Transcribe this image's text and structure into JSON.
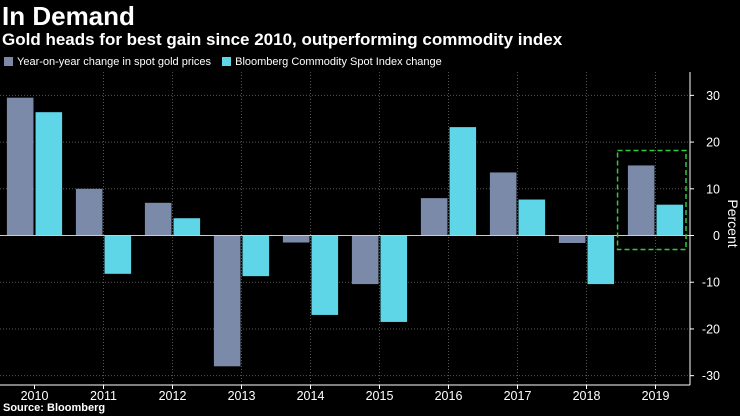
{
  "header": {
    "title": "In Demand",
    "subtitle": "Gold heads for best gain since 2010, outperforming commodity index"
  },
  "source": "Source: Bloomberg",
  "colors": {
    "gold_series": "#7b8aa8",
    "commodity_series": "#5fd6e8",
    "highlight_box": "#2ecc40",
    "grid": "#555555",
    "background": "#000000"
  },
  "chart_data": {
    "type": "bar",
    "title": "In Demand",
    "subtitle": "Gold heads for best gain since 2010, outperforming commodity index",
    "categories": [
      "2010",
      "2011",
      "2012",
      "2013",
      "2014",
      "2015",
      "2016",
      "2017",
      "2018",
      "2019"
    ],
    "series": [
      {
        "name": "Year-on-year change in spot gold prices",
        "values": [
          29.5,
          10,
          7,
          -28,
          -1.5,
          -10.4,
          8,
          13.5,
          -1.6,
          15
        ]
      },
      {
        "name": "Bloomberg Commodity Spot Index change",
        "values": [
          26.4,
          -8.2,
          3.7,
          -8.7,
          -17,
          -18.5,
          23.2,
          7.7,
          -10.4,
          6.6
        ]
      }
    ],
    "xlabel": "",
    "ylabel": "Percent",
    "ylim": [
      -32,
      35
    ],
    "yticks": [
      30,
      20,
      10,
      0,
      -10,
      -20,
      -30
    ],
    "grid": true,
    "legend_position": "top-left",
    "annotation": {
      "type": "dashed-box",
      "category": "2019",
      "from": -3,
      "to": 18.2
    }
  }
}
